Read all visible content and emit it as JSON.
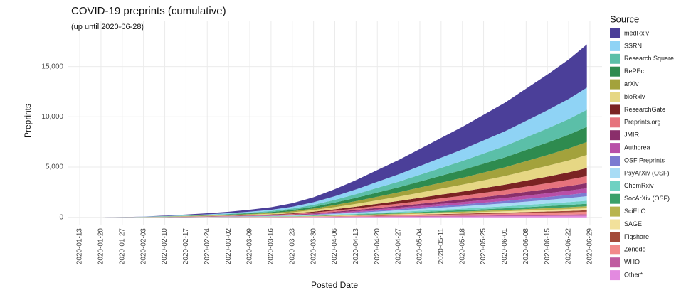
{
  "chart_data": {
    "type": "stacked_area",
    "title": "COVID-19 preprints (cumulative)",
    "subtitle": "(up until 2020-06-28)",
    "x_label": "Posted Date",
    "y_label": "Preprints",
    "legend_title": "Source",
    "legend_position": "right",
    "grid": true,
    "x": [
      "2020-01-13",
      "2020-01-20",
      "2020-01-27",
      "2020-02-03",
      "2020-02-10",
      "2020-02-17",
      "2020-02-24",
      "2020-03-02",
      "2020-03-09",
      "2020-03-16",
      "2020-03-23",
      "2020-03-30",
      "2020-04-06",
      "2020-04-13",
      "2020-04-20",
      "2020-04-27",
      "2020-05-04",
      "2020-05-11",
      "2020-05-18",
      "2020-05-25",
      "2020-06-01",
      "2020-06-08",
      "2020-06-15",
      "2020-06-22",
      "2020-06-28"
    ],
    "xlim": [
      "2020-01-09",
      "2020-07-03"
    ],
    "xticks": [
      "2020-01-13",
      "2020-01-20",
      "2020-01-27",
      "2020-02-03",
      "2020-02-10",
      "2020-02-17",
      "2020-02-24",
      "2020-03-02",
      "2020-03-09",
      "2020-03-16",
      "2020-03-23",
      "2020-03-30",
      "2020-04-06",
      "2020-04-13",
      "2020-04-20",
      "2020-04-27",
      "2020-05-04",
      "2020-05-11",
      "2020-05-18",
      "2020-05-25",
      "2020-06-01",
      "2020-06-08",
      "2020-06-15",
      "2020-06-22",
      "2020-06-29"
    ],
    "ylim": [
      -800,
      19500
    ],
    "yticks": [
      0,
      {
        "value": 5000,
        "label": "5,000"
      },
      {
        "value": 10000,
        "label": "10,000"
      },
      {
        "value": 15000,
        "label": "15,000"
      }
    ],
    "series": [
      {
        "name": "medRxiv",
        "color": "#4b3f99",
        "values": [
          0,
          0,
          5,
          20,
          43,
          70,
          100,
          138,
          187,
          250,
          350,
          500,
          700,
          925,
          1175,
          1425,
          1700,
          1975,
          2250,
          2550,
          2850,
          3200,
          3550,
          3925,
          4300
        ]
      },
      {
        "name": "SSRN",
        "color": "#8fd3f5",
        "values": [
          0,
          0,
          3,
          10,
          22,
          36,
          51,
          70,
          96,
          128,
          179,
          256,
          358,
          473,
          601,
          729,
          870,
          1010,
          1151,
          1305,
          1458,
          1637,
          1816,
          2008,
          2200
        ]
      },
      {
        "name": "Research Square",
        "color": "#5bbfa8",
        "values": [
          0,
          0,
          2,
          8,
          17,
          28,
          40,
          54,
          74,
          99,
          138,
          198,
          277,
          366,
          465,
          563,
          672,
          781,
          890,
          1008,
          1127,
          1265,
          1404,
          1552,
          1700
        ]
      },
      {
        "name": "RePEc",
        "color": "#2e8b4f",
        "values": [
          0,
          0,
          2,
          7,
          15,
          24,
          35,
          48,
          65,
          87,
          122,
          174,
          244,
          323,
          410,
          497,
          593,
          689,
          785,
          890,
          994,
          1116,
          1238,
          1369,
          1500
        ]
      },
      {
        "name": "arXiv",
        "color": "#a3a23c",
        "values": [
          0,
          0,
          2,
          6,
          13,
          21,
          30,
          42,
          57,
          76,
          106,
          151,
          212,
          280,
          355,
          431,
          514,
          597,
          680,
          771,
          862,
          967,
          1073,
          1187,
          1300
        ]
      },
      {
        "name": "bioRxiv",
        "color": "#e6d784",
        "values": [
          0,
          0,
          2,
          6,
          13,
          21,
          30,
          42,
          57,
          76,
          106,
          151,
          212,
          280,
          355,
          431,
          514,
          597,
          680,
          771,
          862,
          967,
          1073,
          1187,
          1300
        ]
      },
      {
        "name": "ResearchGate",
        "color": "#7b2323",
        "values": [
          0,
          0,
          1,
          4,
          8,
          13,
          19,
          26,
          35,
          46,
          65,
          93,
          130,
          172,
          219,
          265,
          316,
          367,
          419,
          474,
          530,
          595,
          660,
          730,
          800
        ]
      },
      {
        "name": "Preprints.org",
        "color": "#e6737d",
        "values": [
          0,
          0,
          1,
          3,
          7,
          11,
          16,
          22,
          31,
          41,
          57,
          81,
          114,
          151,
          191,
          232,
          277,
          322,
          366,
          415,
          464,
          521,
          578,
          639,
          700
        ]
      },
      {
        "name": "JMIR",
        "color": "#8a2f6b",
        "values": [
          0,
          0,
          1,
          2,
          5,
          8,
          12,
          16,
          22,
          29,
          41,
          58,
          81,
          108,
          137,
          166,
          198,
          230,
          262,
          297,
          331,
          372,
          413,
          456,
          500
        ]
      },
      {
        "name": "Authorea",
        "color": "#b84fa8",
        "values": [
          0,
          0,
          1,
          2,
          4,
          7,
          10,
          14,
          20,
          26,
          37,
          52,
          73,
          97,
          123,
          149,
          178,
          207,
          235,
          267,
          298,
          335,
          372,
          411,
          450
        ]
      },
      {
        "name": "OSF Preprints",
        "color": "#7b7bd1",
        "values": [
          0,
          0,
          0,
          2,
          3,
          6,
          8,
          11,
          15,
          20,
          28,
          41,
          57,
          75,
          96,
          116,
          138,
          161,
          183,
          208,
          232,
          260,
          289,
          319,
          350
        ]
      },
      {
        "name": "PsyArXiv (OSF)",
        "color": "#a8dcf5",
        "values": [
          0,
          0,
          1,
          2,
          4,
          7,
          10,
          14,
          20,
          26,
          37,
          52,
          73,
          97,
          123,
          149,
          178,
          207,
          235,
          267,
          298,
          335,
          372,
          411,
          450
        ]
      },
      {
        "name": "ChemRxiv",
        "color": "#6fd1c2",
        "values": [
          0,
          0,
          0,
          1,
          3,
          5,
          7,
          10,
          13,
          17,
          24,
          35,
          49,
          65,
          82,
          99,
          119,
          138,
          157,
          178,
          199,
          223,
          248,
          274,
          300
        ]
      },
      {
        "name": "SocArXiv (OSF)",
        "color": "#3aa06a",
        "values": [
          0,
          0,
          0,
          1,
          2,
          4,
          6,
          8,
          11,
          15,
          20,
          29,
          41,
          54,
          68,
          83,
          99,
          115,
          131,
          148,
          166,
          186,
          206,
          228,
          250
        ]
      },
      {
        "name": "SciELO",
        "color": "#b8b44e",
        "values": [
          0,
          0,
          0,
          1,
          2,
          3,
          5,
          6,
          9,
          12,
          16,
          23,
          33,
          43,
          55,
          66,
          79,
          92,
          105,
          119,
          133,
          149,
          165,
          183,
          200
        ]
      },
      {
        "name": "SAGE",
        "color": "#f2e19b",
        "values": [
          0,
          0,
          0,
          1,
          2,
          3,
          5,
          6,
          9,
          12,
          16,
          23,
          33,
          43,
          55,
          66,
          79,
          92,
          105,
          119,
          133,
          149,
          165,
          183,
          200
        ]
      },
      {
        "name": "Figshare",
        "color": "#a34a3a",
        "values": [
          0,
          0,
          0,
          1,
          1,
          2,
          3,
          5,
          7,
          9,
          12,
          17,
          24,
          32,
          41,
          50,
          59,
          69,
          78,
          89,
          99,
          112,
          124,
          137,
          150
        ]
      },
      {
        "name": "Zenodo",
        "color": "#f28a8a",
        "values": [
          0,
          0,
          0,
          1,
          2,
          4,
          6,
          8,
          11,
          15,
          20,
          29,
          41,
          54,
          68,
          83,
          99,
          115,
          131,
          148,
          166,
          186,
          206,
          228,
          250
        ]
      },
      {
        "name": "WHO",
        "color": "#c05ca0",
        "values": [
          0,
          0,
          0,
          1,
          1,
          2,
          3,
          5,
          7,
          9,
          12,
          17,
          24,
          32,
          41,
          50,
          59,
          69,
          78,
          89,
          99,
          112,
          124,
          137,
          150
        ]
      },
      {
        "name": "Other*",
        "color": "#e38ae0",
        "values": [
          0,
          0,
          0,
          1,
          1,
          2,
          3,
          5,
          7,
          9,
          12,
          17,
          24,
          32,
          41,
          50,
          59,
          69,
          78,
          89,
          99,
          112,
          124,
          137,
          150
        ]
      }
    ]
  }
}
